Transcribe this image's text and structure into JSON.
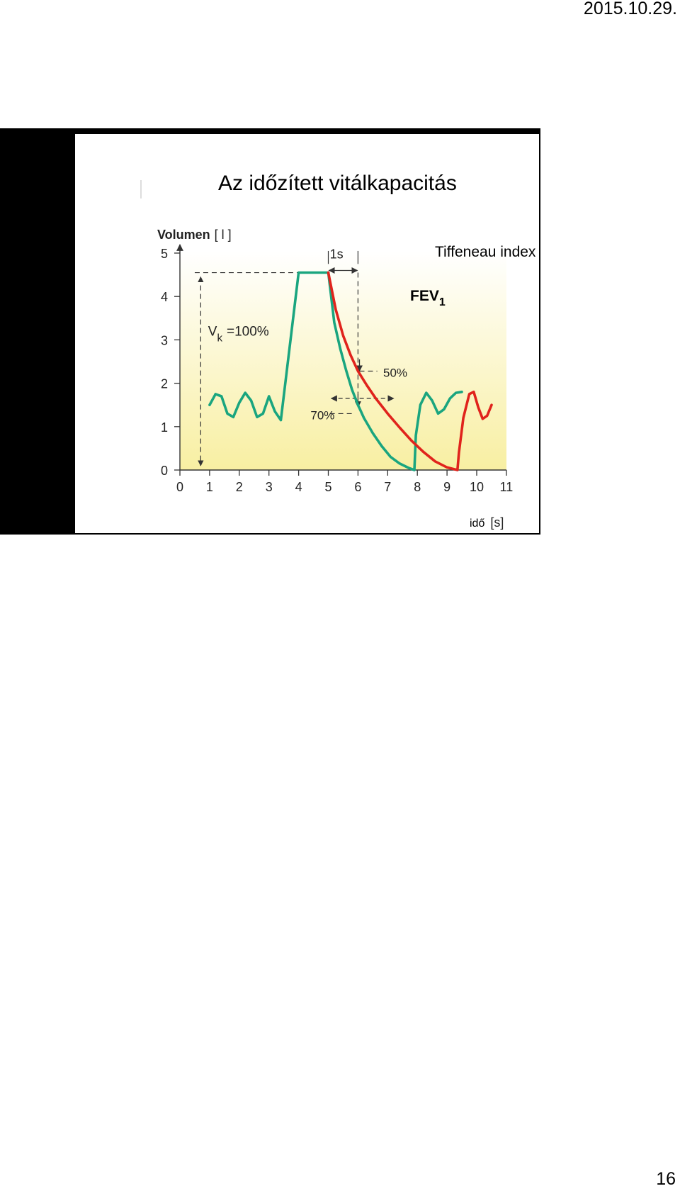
{
  "page": {
    "date": "2015.10.29.",
    "page_number": "16"
  },
  "slide": {
    "title": "Az időzített vitálkapacitás",
    "annotation_tiffeneau": "Tiffeneau index",
    "annotation_fev_main": "FEV",
    "annotation_fev_sub": "1"
  },
  "figure": {
    "y_axis_label_bold": "Volumen",
    "y_axis_unit": "[ l ]",
    "x_axis_label": "idő",
    "x_axis_unit": "[s]",
    "label_1s": "1s",
    "label_vk_main": "V",
    "label_vk_sub": "k",
    "label_vk_rest": "=100%",
    "label_50": "50%",
    "label_70": "70%",
    "colors": {
      "healthy": "#1aa57f",
      "obstructive": "#e0231c",
      "background_top": "#ffffff",
      "background_bottom": "#f8efa2"
    }
  },
  "chart_data": {
    "type": "line",
    "xlabel": "idő [s]",
    "ylabel": "Volumen [ l ]",
    "xlim": [
      0,
      11
    ],
    "ylim": [
      0,
      5
    ],
    "x_ticks": [
      "0",
      "1",
      "2",
      "3",
      "4",
      "5",
      "6",
      "7",
      "8",
      "9",
      "10",
      "11"
    ],
    "y_ticks": [
      "0",
      "1",
      "2",
      "3",
      "4",
      "5"
    ],
    "grid": false,
    "series": [
      {
        "color": "#1aa57f",
        "x": [
          1.0,
          1.2,
          1.4,
          1.6,
          1.8,
          2.0,
          2.2,
          2.4,
          2.6,
          2.8,
          3.0,
          3.2,
          3.4,
          4.0,
          5.0,
          5.2,
          5.4,
          5.6,
          5.8,
          6.0,
          6.2,
          6.5,
          6.8,
          7.1,
          7.4,
          7.7,
          7.9,
          7.95,
          8.1,
          8.3,
          8.5,
          8.7,
          8.9,
          9.1,
          9.3,
          9.5
        ],
        "y": [
          1.5,
          1.75,
          1.7,
          1.3,
          1.22,
          1.55,
          1.78,
          1.6,
          1.22,
          1.3,
          1.7,
          1.35,
          1.15,
          4.55,
          4.55,
          3.4,
          2.8,
          2.3,
          1.85,
          1.5,
          1.2,
          0.85,
          0.55,
          0.3,
          0.15,
          0.05,
          0.0,
          0.8,
          1.5,
          1.78,
          1.6,
          1.3,
          1.4,
          1.65,
          1.78,
          1.8
        ]
      },
      {
        "color": "#e0231c",
        "x": [
          5.0,
          5.25,
          5.5,
          5.75,
          6.0,
          6.3,
          6.6,
          7.0,
          7.4,
          7.8,
          8.2,
          8.6,
          9.0,
          9.35,
          9.4,
          9.55,
          9.75,
          9.9,
          10.05,
          10.2,
          10.35,
          10.5
        ],
        "y": [
          4.55,
          3.7,
          3.1,
          2.65,
          2.28,
          1.95,
          1.65,
          1.3,
          0.98,
          0.68,
          0.42,
          0.2,
          0.06,
          0.0,
          0.4,
          1.2,
          1.75,
          1.8,
          1.45,
          1.18,
          1.25,
          1.5
        ]
      }
    ],
    "annotations": [
      "1s",
      "V k =100%",
      "50%",
      "70%"
    ]
  }
}
